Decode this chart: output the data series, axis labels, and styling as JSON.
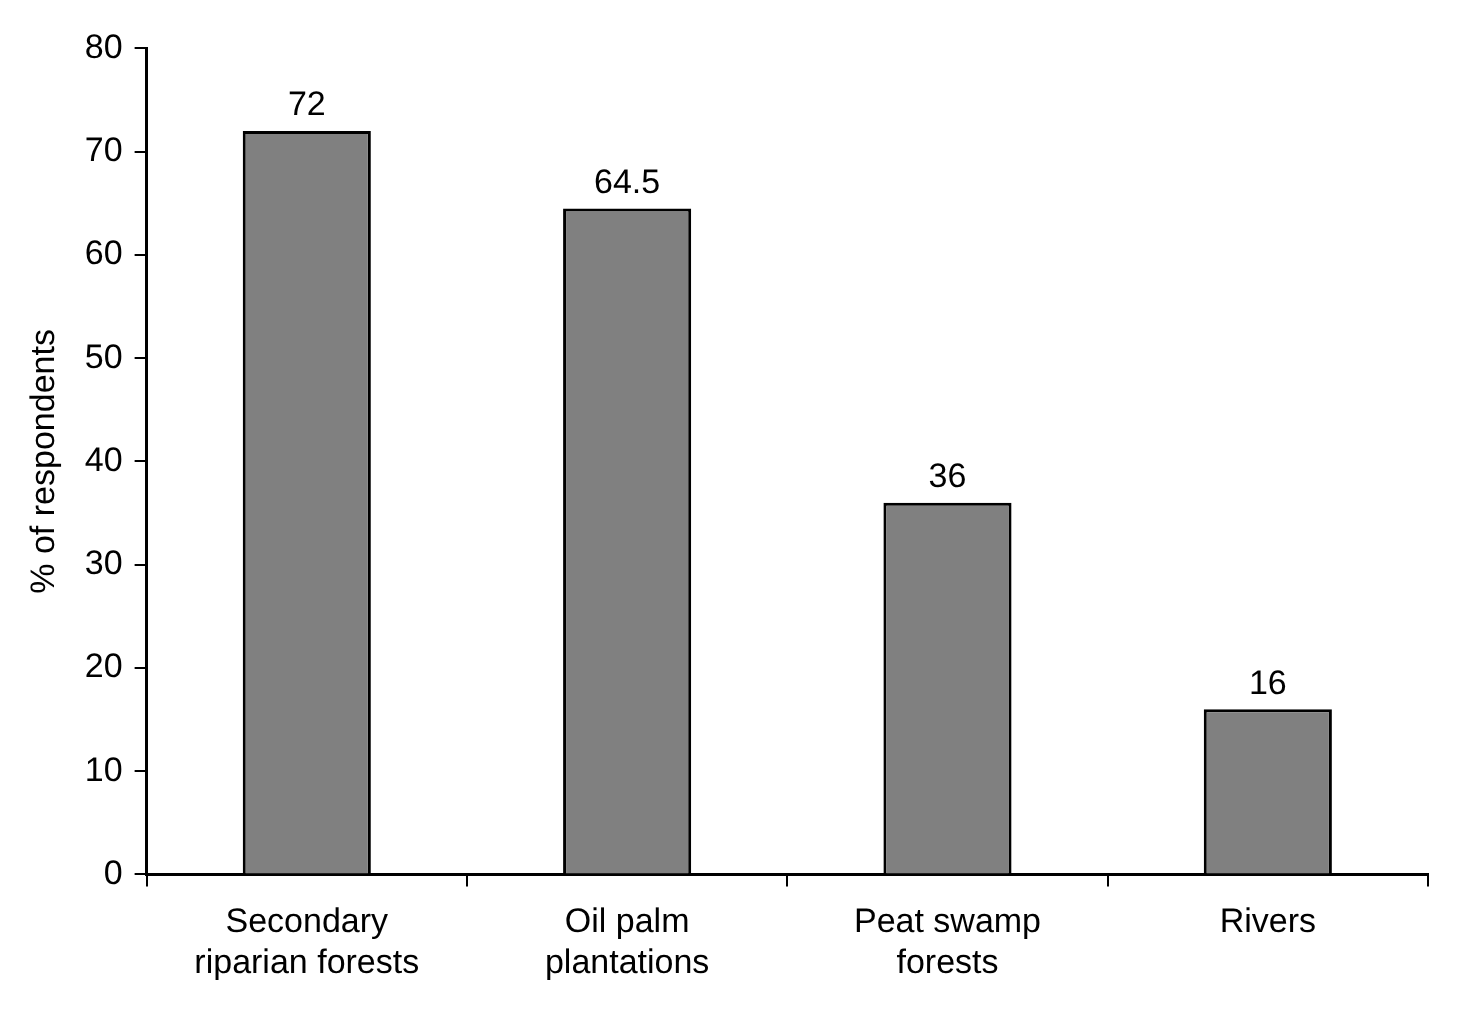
{
  "chart_data": {
    "type": "bar",
    "ylabel": "% of respondents",
    "categories": [
      "Secondary riparian forests",
      "Oil palm plantations",
      "Peat swamp forests",
      "Rivers"
    ],
    "values": [
      72,
      64.5,
      36,
      16
    ],
    "color": "#808080",
    "ylim": [
      0,
      80
    ],
    "yticks": [
      0,
      10,
      20,
      30,
      40,
      50,
      60,
      70,
      80
    ],
    "grid": false,
    "legend": false,
    "data_labels": true
  }
}
